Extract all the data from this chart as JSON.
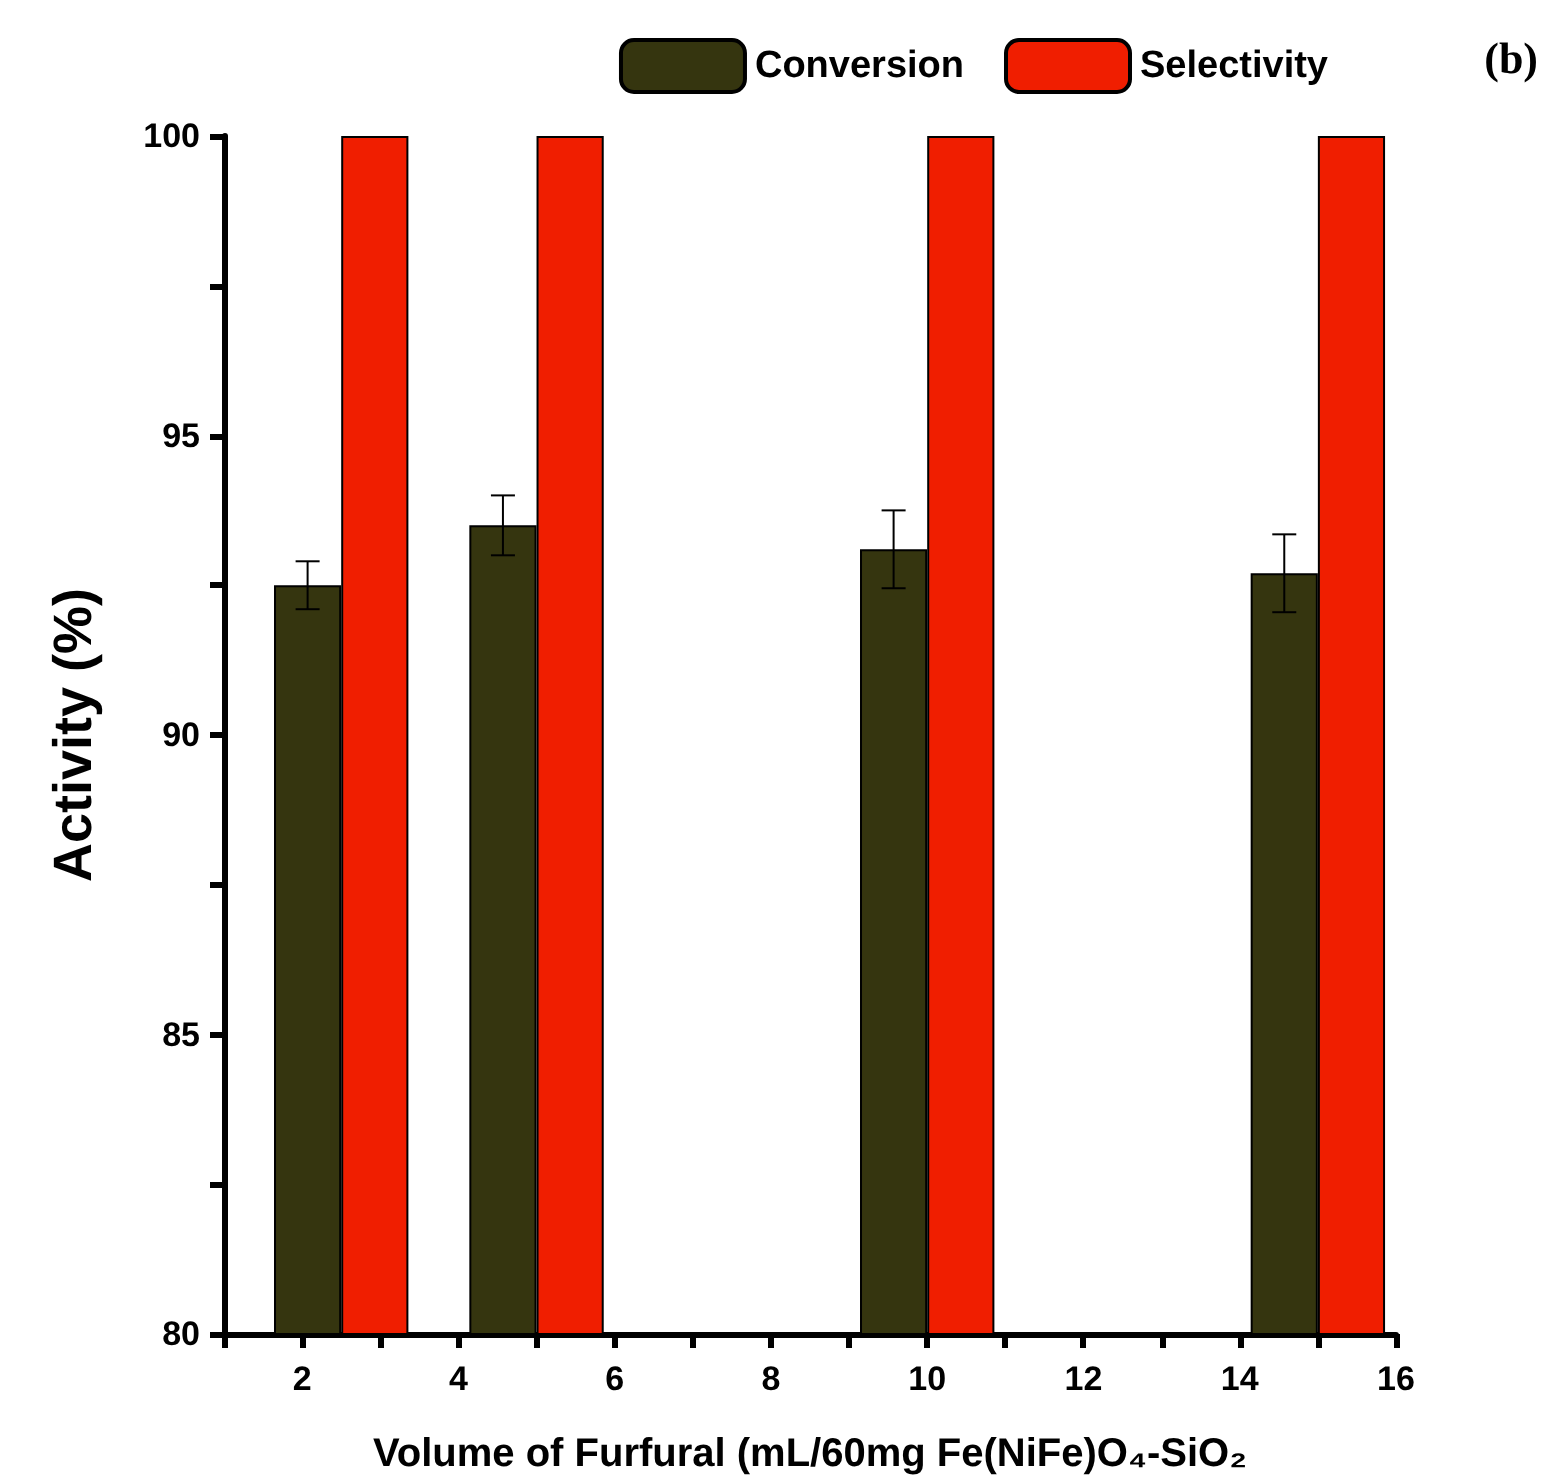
{
  "chart_data": {
    "type": "bar",
    "xlabel": "Volume of Furfural (mL/60mg Fe(NiFe)O₄-SiO₂",
    "ylabel": "Activity (%)",
    "annotations": [
      "(b)"
    ],
    "x": [
      2.5,
      5,
      10,
      15
    ],
    "series": [
      {
        "name": "Conversion",
        "color": "#35350f",
        "values": [
          92.5,
          93.5,
          93.1,
          92.7
        ],
        "errors": [
          0.4,
          0.5,
          0.65,
          0.65
        ]
      },
      {
        "name": "Selectivity",
        "color": "#f01e00",
        "values": [
          100,
          100,
          100,
          100
        ]
      }
    ],
    "xlim": [
      1,
      16
    ],
    "xticks": [
      {
        "value": 1,
        "label": null
      },
      2,
      {
        "value": 3,
        "label": null
      },
      4,
      {
        "value": 5,
        "label": null
      },
      6,
      {
        "value": 7,
        "label": null
      },
      8,
      {
        "value": 9,
        "label": null
      },
      10,
      {
        "value": 11,
        "label": null
      },
      12,
      {
        "value": 13,
        "label": null
      },
      14,
      {
        "value": 15,
        "label": null
      },
      16
    ],
    "ylim": [
      80,
      100
    ],
    "yticks": [
      80,
      {
        "value": 82.5,
        "label": null
      },
      85,
      {
        "value": 87.5,
        "label": null
      },
      90,
      {
        "value": 92.5,
        "label": null
      },
      95,
      {
        "value": 97.5,
        "label": null
      },
      100
    ],
    "grid": false,
    "legend": "top right"
  }
}
